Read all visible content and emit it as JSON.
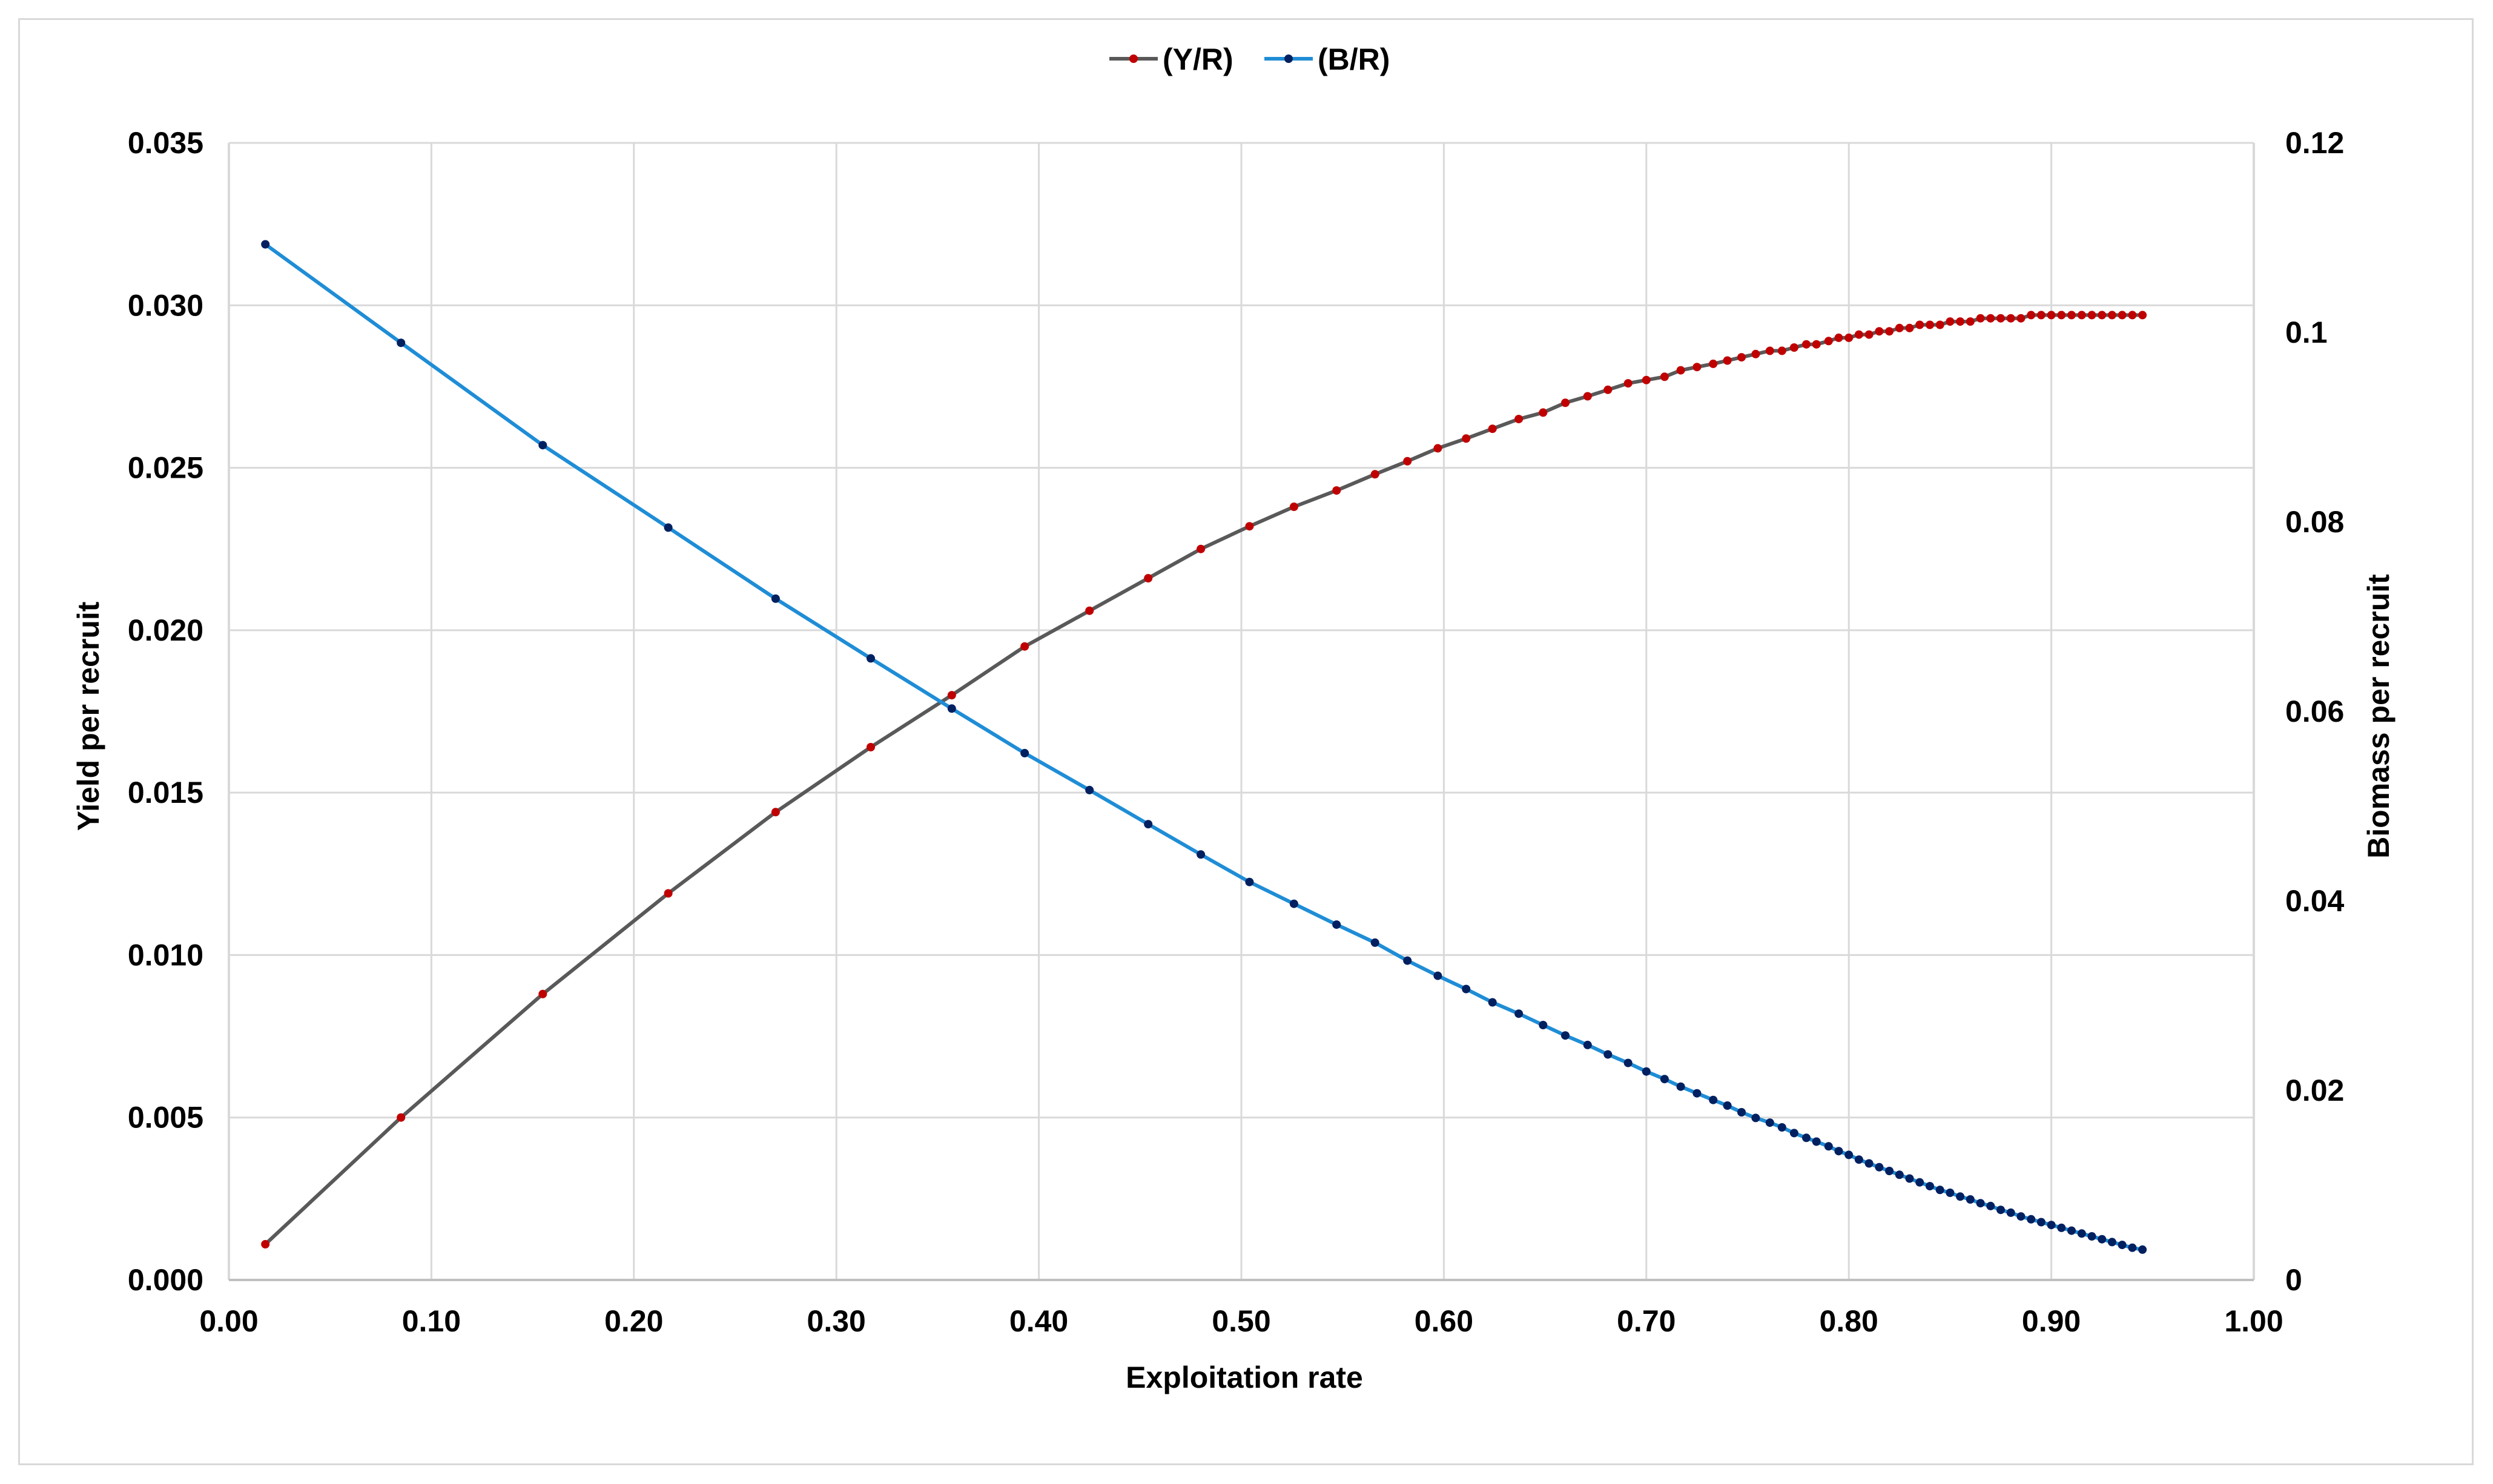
{
  "chart_data": {
    "type": "line",
    "title": "",
    "xlabel": "Exploitation rate",
    "ylabel": "Yield per recruit",
    "y2label": "Biomass per recruit",
    "xlim": [
      0,
      1
    ],
    "ylim": [
      0,
      0.035
    ],
    "y2lim": [
      0,
      0.12
    ],
    "x_ticks": [
      "0.00",
      "0.10",
      "0.20",
      "0.30",
      "0.40",
      "0.50",
      "0.60",
      "0.70",
      "0.80",
      "0.90",
      "1.00"
    ],
    "y_ticks": [
      "0.000",
      "0.005",
      "0.010",
      "0.015",
      "0.020",
      "0.025",
      "0.030",
      "0.035"
    ],
    "y2_ticks": [
      "0",
      "0.02",
      "0.04",
      "0.06",
      "0.08",
      "0.1",
      "0.12"
    ],
    "grid": true,
    "legend_position": "top-center",
    "series": [
      {
        "name": "(Y/R)",
        "axis": "left",
        "line_color": "#595959",
        "marker_color": "#c00000",
        "x": [
          0.018,
          0.085,
          0.155,
          0.217,
          0.27,
          0.317,
          0.357,
          0.393,
          0.425,
          0.454,
          0.48,
          0.504,
          0.526,
          0.547,
          0.566,
          0.582,
          0.597,
          0.611,
          0.624,
          0.637,
          0.649,
          0.66,
          0.671,
          0.681,
          0.691,
          0.7,
          0.709,
          0.717,
          0.725,
          0.733,
          0.74,
          0.747,
          0.754,
          0.761,
          0.767,
          0.773,
          0.779,
          0.784,
          0.79,
          0.795,
          0.8,
          0.805,
          0.81,
          0.815,
          0.82,
          0.825,
          0.83,
          0.835,
          0.84,
          0.845,
          0.85,
          0.855,
          0.86,
          0.865,
          0.87,
          0.875,
          0.88,
          0.885,
          0.89,
          0.895,
          0.9,
          0.905,
          0.91,
          0.915,
          0.92,
          0.925,
          0.93,
          0.935,
          0.94,
          0.945
        ],
        "y": [
          0.0011,
          0.005,
          0.0088,
          0.0119,
          0.0144,
          0.0164,
          0.018,
          0.0195,
          0.0206,
          0.0216,
          0.0225,
          0.0232,
          0.0238,
          0.0243,
          0.0248,
          0.0252,
          0.0256,
          0.0259,
          0.0262,
          0.0265,
          0.0267,
          0.027,
          0.0272,
          0.0274,
          0.0276,
          0.0277,
          0.0278,
          0.028,
          0.0281,
          0.0282,
          0.0283,
          0.0284,
          0.0285,
          0.0286,
          0.0286,
          0.0287,
          0.0288,
          0.0288,
          0.0289,
          0.029,
          0.029,
          0.0291,
          0.0291,
          0.0292,
          0.0292,
          0.0293,
          0.0293,
          0.0294,
          0.0294,
          0.0294,
          0.0295,
          0.0295,
          0.0295,
          0.0296,
          0.0296,
          0.0296,
          0.0296,
          0.0296,
          0.0297,
          0.0297,
          0.0297,
          0.0297,
          0.0297,
          0.0297,
          0.0297,
          0.0297,
          0.0297,
          0.0297,
          0.0297,
          0.0297
        ]
      },
      {
        "name": "(B/R)",
        "axis": "right",
        "line_color": "#1f8dd6",
        "marker_color": "#002060",
        "x": [
          0.018,
          0.085,
          0.155,
          0.217,
          0.27,
          0.317,
          0.357,
          0.393,
          0.425,
          0.454,
          0.48,
          0.504,
          0.526,
          0.547,
          0.566,
          0.582,
          0.597,
          0.611,
          0.624,
          0.637,
          0.649,
          0.66,
          0.671,
          0.681,
          0.691,
          0.7,
          0.709,
          0.717,
          0.725,
          0.733,
          0.74,
          0.747,
          0.754,
          0.761,
          0.767,
          0.773,
          0.779,
          0.784,
          0.79,
          0.795,
          0.8,
          0.805,
          0.81,
          0.815,
          0.82,
          0.825,
          0.83,
          0.835,
          0.84,
          0.845,
          0.85,
          0.855,
          0.86,
          0.865,
          0.87,
          0.875,
          0.88,
          0.885,
          0.89,
          0.895,
          0.9,
          0.905,
          0.91,
          0.915,
          0.92,
          0.925,
          0.93,
          0.935,
          0.94,
          0.945
        ],
        "y": [
          0.1093,
          0.0989,
          0.0881,
          0.0794,
          0.0719,
          0.0656,
          0.0603,
          0.0556,
          0.0517,
          0.0481,
          0.0449,
          0.042,
          0.0397,
          0.0375,
          0.0356,
          0.0337,
          0.0321,
          0.0307,
          0.0293,
          0.0281,
          0.0269,
          0.0258,
          0.0248,
          0.0238,
          0.0229,
          0.022,
          0.0212,
          0.0204,
          0.0197,
          0.019,
          0.0184,
          0.0177,
          0.0171,
          0.0166,
          0.0161,
          0.0155,
          0.015,
          0.0146,
          0.0141,
          0.0136,
          0.0132,
          0.0127,
          0.0123,
          0.0119,
          0.0115,
          0.0111,
          0.0107,
          0.0103,
          0.0099,
          0.0095,
          0.0092,
          0.0088,
          0.0085,
          0.0081,
          0.0078,
          0.0074,
          0.0071,
          0.0067,
          0.0064,
          0.0061,
          0.0058,
          0.0055,
          0.0052,
          0.0049,
          0.0046,
          0.0043,
          0.004,
          0.0037,
          0.0034,
          0.0032
        ]
      }
    ]
  }
}
